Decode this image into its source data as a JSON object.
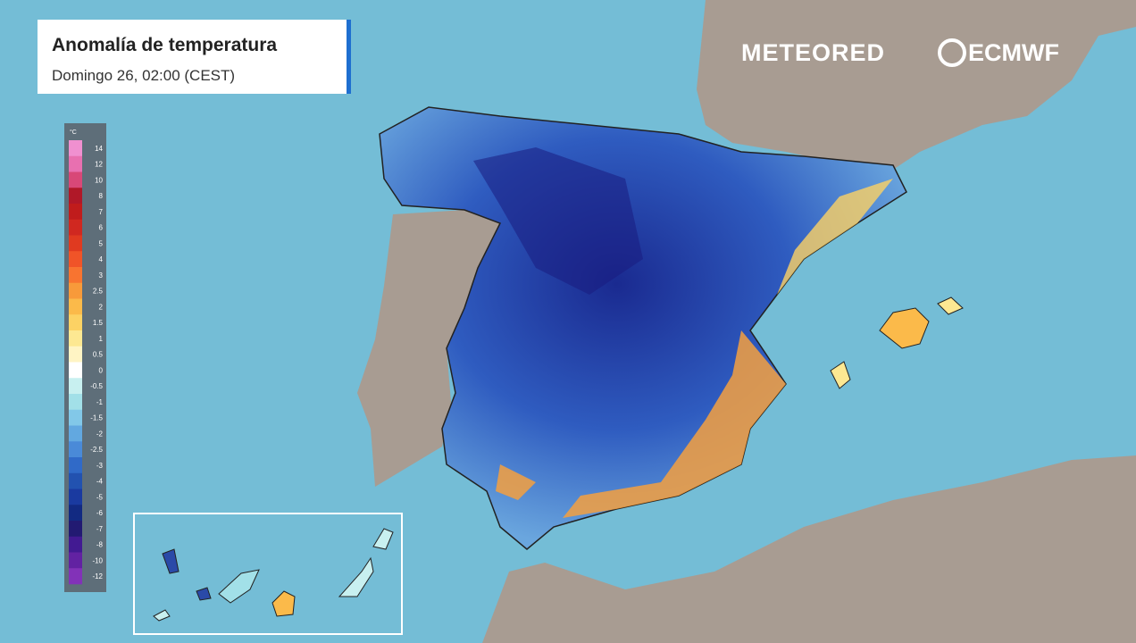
{
  "header": {
    "title": "Anomalía de temperatura",
    "subtitle": "Domingo 26, 02:00 (CEST)"
  },
  "logos": {
    "left": "METEORED",
    "right": "ECMWF"
  },
  "legend": {
    "unit": "°C",
    "entries": [
      {
        "label": "14",
        "color": "#f090d0"
      },
      {
        "label": "12",
        "color": "#e870b0"
      },
      {
        "label": "10",
        "color": "#d84878"
      },
      {
        "label": "8",
        "color": "#b01828"
      },
      {
        "label": "7",
        "color": "#c01c1c"
      },
      {
        "label": "6",
        "color": "#d02820"
      },
      {
        "label": "5",
        "color": "#e03a20"
      },
      {
        "label": "4",
        "color": "#f05428"
      },
      {
        "label": "3",
        "color": "#f87430"
      },
      {
        "label": "2.5",
        "color": "#f89a3a"
      },
      {
        "label": "2",
        "color": "#fbba4a"
      },
      {
        "label": "1.5",
        "color": "#fcd264"
      },
      {
        "label": "1",
        "color": "#fde892"
      },
      {
        "label": "0.5",
        "color": "#fff4c4"
      },
      {
        "label": "0",
        "color": "#ffffff"
      },
      {
        "label": "-0.5",
        "color": "#c8f0f0"
      },
      {
        "label": "-1",
        "color": "#a2e0e8"
      },
      {
        "label": "-1.5",
        "color": "#82c8e8"
      },
      {
        "label": "-2",
        "color": "#62a8e0"
      },
      {
        "label": "-2.5",
        "color": "#4a8ad8"
      },
      {
        "label": "-3",
        "color": "#306ac8"
      },
      {
        "label": "-4",
        "color": "#2252b0"
      },
      {
        "label": "-5",
        "color": "#1a3aa0"
      },
      {
        "label": "-6",
        "color": "#122a82"
      },
      {
        "label": "-7",
        "color": "#221a72"
      },
      {
        "label": "-8",
        "color": "#421a92"
      },
      {
        "label": "-10",
        "color": "#6222a2"
      },
      {
        "label": "-12",
        "color": "#8232b8"
      }
    ]
  }
}
